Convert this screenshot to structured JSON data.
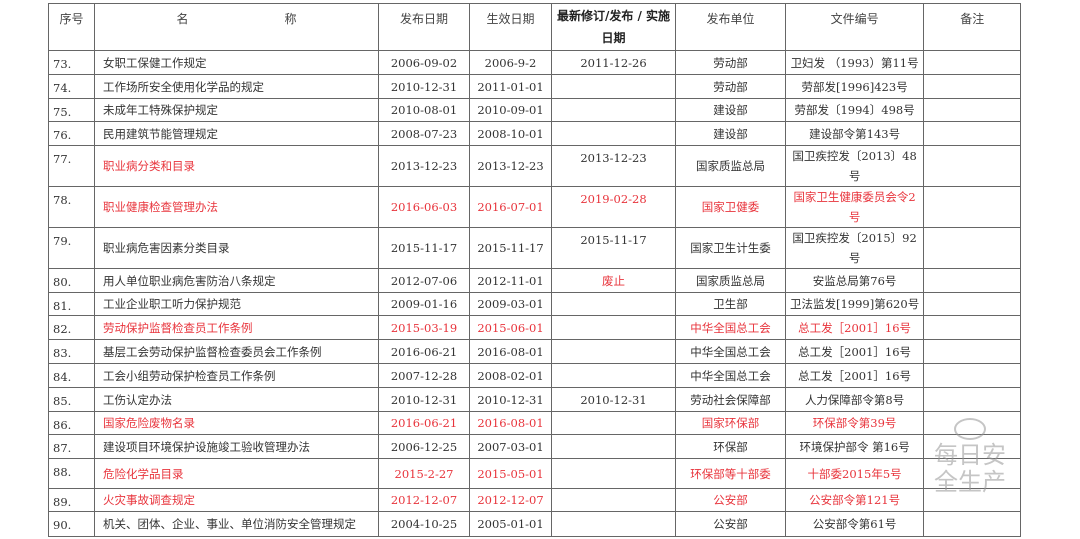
{
  "headers": [
    "序号",
    "名　　　　　　　　称",
    "发布日期",
    "生效日期",
    "最新修订/发布 / 实施日期",
    "发布单位",
    "文件编号",
    "备注"
  ],
  "rows": [
    {
      "no": "73.",
      "name": "女职工保健工作规定",
      "pub": "2006-09-02",
      "eff": "2006-9-2",
      "rev": "2011-12-26",
      "unit": "劳动部",
      "doc": "卫妇发 （1993）第11号",
      "note": "",
      "red": false
    },
    {
      "no": "74.",
      "name": "工作场所安全使用化学品的规定",
      "pub": "2010-12-31",
      "eff": "2011-01-01",
      "rev": "",
      "unit": "劳动部",
      "doc": "劳部发[1996]423号",
      "note": "",
      "red": false
    },
    {
      "no": "75.",
      "name": "未成年工特殊保护规定",
      "pub": "2010-08-01",
      "eff": "2010-09-01",
      "rev": "",
      "unit": "建设部",
      "doc": "劳部发〔1994〕498号",
      "note": "",
      "red": false
    },
    {
      "no": "76.",
      "name": "民用建筑节能管理规定",
      "pub": "2008-07-23",
      "eff": "2008-10-01",
      "rev": "",
      "unit": "建设部",
      "doc": "建设部令第143号",
      "note": "",
      "red": false
    },
    {
      "no": "77.",
      "name": "职业病分类和目录",
      "pub": "2013-12-23",
      "eff": "2013-12-23",
      "rev": "2013-12-23",
      "unit": "国家质监总局",
      "doc": "国卫疾控发〔2013〕48号",
      "note": "",
      "red": "name"
    },
    {
      "no": "78.",
      "name": "职业健康检查管理办法",
      "pub": "2016-06-03",
      "eff": "2016-07-01",
      "rev": "2019-02-28",
      "unit": "国家卫健委",
      "doc": "国家卫生健康委员会令2号",
      "note": "",
      "red": true
    },
    {
      "no": "79.",
      "name": "职业病危害因素分类目录",
      "pub": "2015-11-17",
      "eff": "2015-11-17",
      "rev": "2015-11-17",
      "unit": "国家卫生计生委",
      "doc": "国卫疾控发〔2015〕92号",
      "note": "",
      "red": false
    },
    {
      "no": "80.",
      "name": "用人单位职业病危害防治八条规定",
      "pub": "2012-07-06",
      "eff": "2012-11-01",
      "rev": "废止",
      "unit": "国家质监总局",
      "doc": "安监总局第76号",
      "note": "",
      "red": "rev"
    },
    {
      "no": "81.",
      "name": "工业企业职工听力保护规范",
      "pub": "2009-01-16",
      "eff": "2009-03-01",
      "rev": "",
      "unit": "卫生部",
      "doc": "卫法监发[1999]第620号",
      "note": "",
      "red": false
    },
    {
      "no": "82.",
      "name": "劳动保护监督检查员工作条例",
      "pub": "2015-03-19",
      "eff": "2015-06-01",
      "rev": "",
      "unit": "中华全国总工会",
      "doc": "总工发［2001］16号",
      "note": "",
      "red": true
    },
    {
      "no": "83.",
      "name": "基层工会劳动保护监督检查委员会工作条例",
      "pub": "2016-06-21",
      "eff": "2016-08-01",
      "rev": "",
      "unit": "中华全国总工会",
      "doc": "总工发［2001］16号",
      "note": "",
      "red": false
    },
    {
      "no": "84.",
      "name": "工会小组劳动保护检查员工作条例",
      "pub": "2007-12-28",
      "eff": "2008-02-01",
      "rev": "",
      "unit": "中华全国总工会",
      "doc": "总工发［2001］16号",
      "note": "",
      "red": false
    },
    {
      "no": "85.",
      "name": "工伤认定办法",
      "pub": "2010-12-31",
      "eff": "2010-12-31",
      "rev": "2010-12-31",
      "unit": "劳动社会保障部",
      "doc": "人力保障部令第8号",
      "note": "",
      "red": false
    },
    {
      "no": "86.",
      "name": "国家危险废物名录",
      "pub": "2016-06-21",
      "eff": "2016-08-01",
      "rev": "",
      "unit": "国家环保部",
      "doc": "环保部令第39号",
      "note": "",
      "red": true
    },
    {
      "no": "87.",
      "name": "建设项目环境保护设施竣工验收管理办法",
      "pub": "2006-12-25",
      "eff": "2007-03-01",
      "rev": "",
      "unit": "环保部",
      "doc": "环境保护部令 第16号",
      "note": "",
      "red": false
    },
    {
      "no": "88.",
      "name": "危险化学品目录",
      "pub": "2015-2-27",
      "eff": "2015-05-01",
      "rev": "",
      "unit": "环保部等十部委",
      "doc": "十部委2015年5号",
      "note": "",
      "red": true
    },
    {
      "no": "89.",
      "name": "火灾事故调查规定",
      "pub": "2012-12-07",
      "eff": "2012-12-07",
      "rev": "",
      "unit": "公安部",
      "doc": "公安部令第121号",
      "note": "",
      "red": true
    },
    {
      "no": "90.",
      "name": "机关、团体、企业、事业、单位消防安全管理规定",
      "pub": "2004-10-25",
      "eff": "2005-01-01",
      "rev": "",
      "unit": "公安部",
      "doc": "公安部令第61号",
      "note": "",
      "red": false
    }
  ],
  "watermark": "每日安全生产",
  "colors": {
    "red": "#e8343c",
    "text": "#333333",
    "border": "#666666"
  }
}
